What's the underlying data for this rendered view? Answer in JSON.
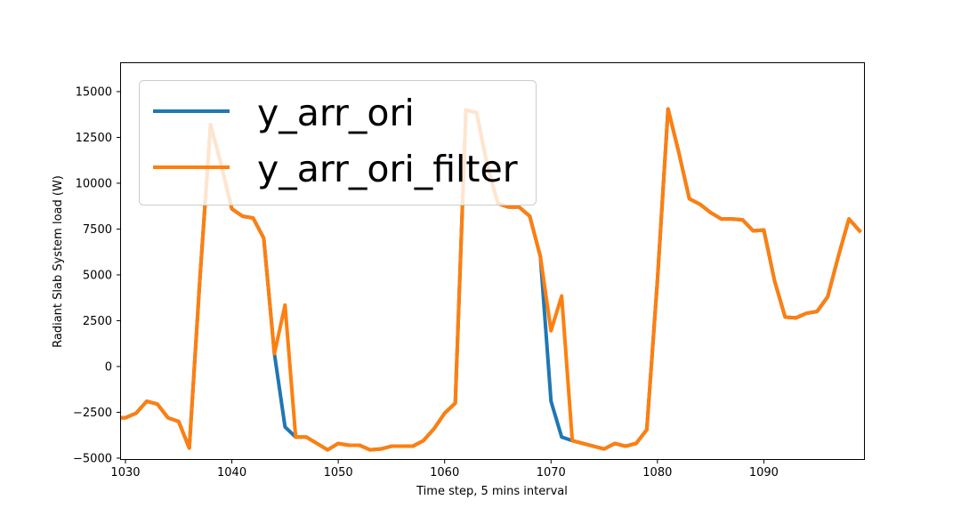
{
  "chart_data": {
    "type": "line",
    "xlabel": "Time step, 5 mins interval",
    "ylabel": "Radiant Slab System load (W)",
    "xlim": [
      1029.5,
      1099.5
    ],
    "ylim": [
      -5100,
      16600
    ],
    "xticks": [
      1030,
      1040,
      1050,
      1060,
      1070,
      1080,
      1090
    ],
    "yticks": [
      -5000,
      -2500,
      0,
      2500,
      5000,
      7500,
      10000,
      12500,
      15000
    ],
    "grid": false,
    "legend_position": "upper-left",
    "x": [
      1029,
      1030,
      1031,
      1032,
      1033,
      1034,
      1035,
      1036,
      1037,
      1038,
      1039,
      1040,
      1041,
      1042,
      1043,
      1044,
      1045,
      1046,
      1047,
      1048,
      1049,
      1050,
      1051,
      1052,
      1053,
      1054,
      1055,
      1056,
      1057,
      1058,
      1059,
      1060,
      1061,
      1062,
      1063,
      1064,
      1065,
      1066,
      1067,
      1068,
      1069,
      1070,
      1071,
      1072,
      1073,
      1074,
      1075,
      1076,
      1077,
      1078,
      1079,
      1080,
      1081,
      1082,
      1083,
      1084,
      1085,
      1086,
      1087,
      1088,
      1089,
      1090,
      1091,
      1092,
      1093,
      1094,
      1095,
      1096,
      1097,
      1098,
      1099
    ],
    "series": [
      {
        "name": "y_arr_ori",
        "color": "#1f77b4",
        "values": [
          -2800,
          -2800,
          -2550,
          -1900,
          -2050,
          -2800,
          -3000,
          -4450,
          4800,
          13200,
          11000,
          8600,
          8200,
          8100,
          7000,
          700,
          -3300,
          -3850,
          -3850,
          -4200,
          -4550,
          -4200,
          -4300,
          -4300,
          -4550,
          -4500,
          -4350,
          -4350,
          -4350,
          -4050,
          -3400,
          -2550,
          -2000,
          14000,
          13850,
          11000,
          8900,
          8700,
          8700,
          8200,
          6000,
          -1900,
          -3850,
          -4050,
          -4200,
          -4350,
          -4500,
          -4200,
          -4350,
          -4200,
          -3450,
          4700,
          14050,
          11700,
          9150,
          8850,
          8400,
          8050,
          8050,
          8000,
          7400,
          7450,
          4700,
          2700,
          2650,
          2900,
          3000,
          3800,
          6000,
          8050,
          7400
        ]
      },
      {
        "name": "y_arr_ori_filter",
        "color": "#ff7f0e",
        "values": [
          -2800,
          -2800,
          -2550,
          -1900,
          -2050,
          -2800,
          -3000,
          -4450,
          4800,
          13200,
          11000,
          8600,
          8200,
          8100,
          7000,
          700,
          3350,
          -3850,
          -3850,
          -4200,
          -4550,
          -4200,
          -4300,
          -4300,
          -4550,
          -4500,
          -4350,
          -4350,
          -4350,
          -4050,
          -3400,
          -2550,
          -2000,
          14000,
          13850,
          11000,
          8900,
          8700,
          8700,
          8200,
          6000,
          1950,
          3850,
          -4050,
          -4200,
          -4350,
          -4500,
          -4200,
          -4350,
          -4200,
          -3450,
          4700,
          14050,
          11700,
          9150,
          8850,
          8400,
          8050,
          8050,
          8000,
          7400,
          7450,
          4700,
          2700,
          2650,
          2900,
          3000,
          3800,
          6000,
          8050,
          7400
        ]
      }
    ]
  }
}
